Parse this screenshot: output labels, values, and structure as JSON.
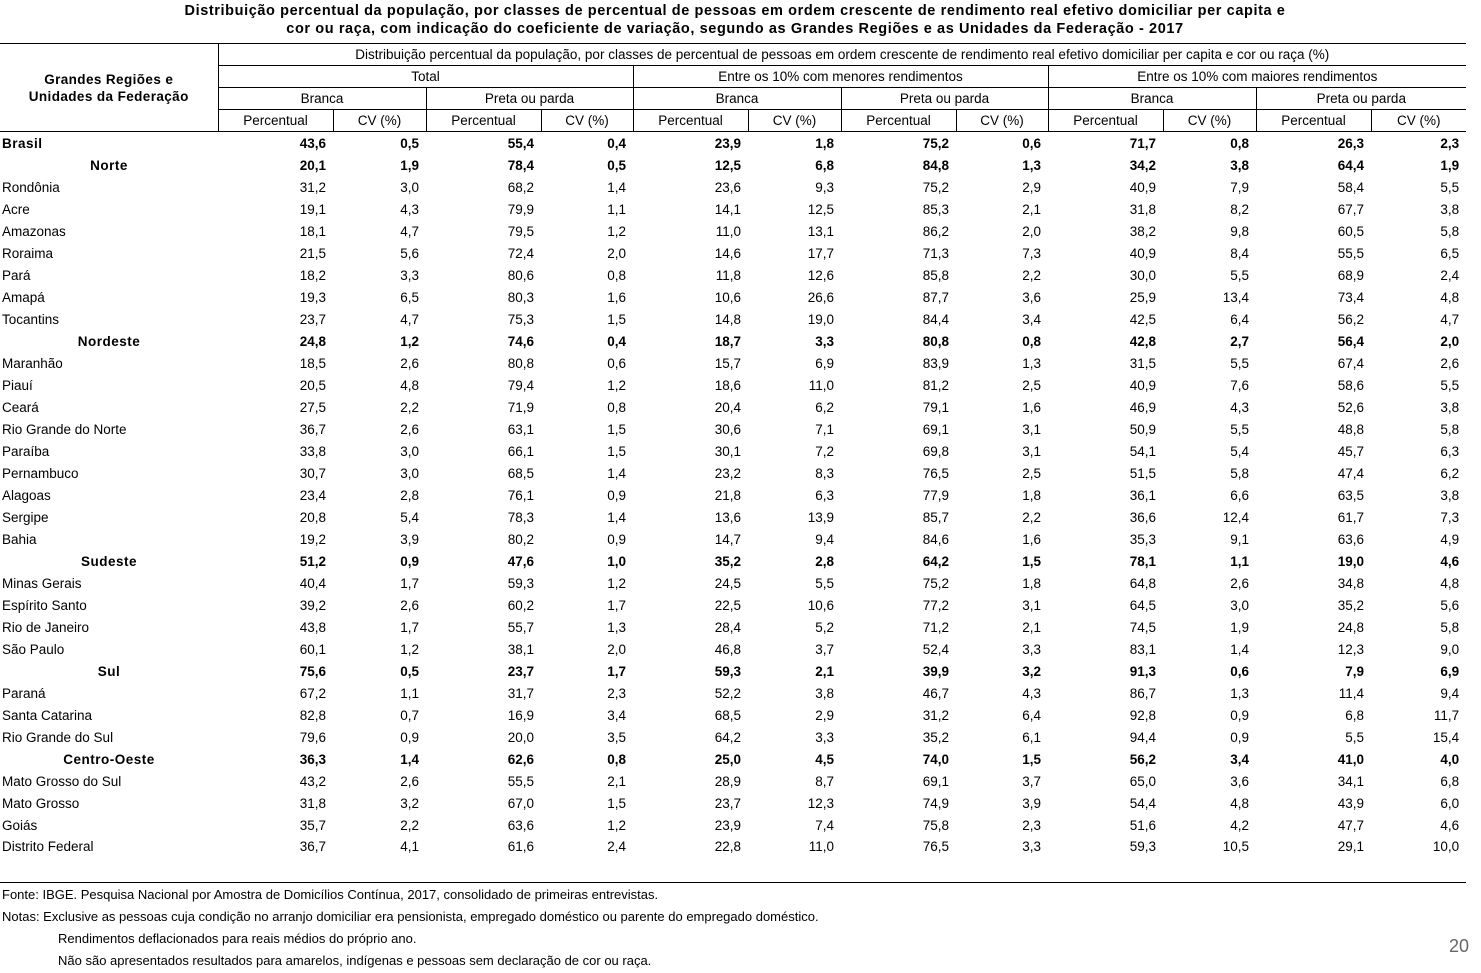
{
  "title": {
    "line1": "Distribuição percentual da população, por classes de percentual de pessoas em ordem crescente de rendimento real efetivo domiciliar per capita e",
    "line2": "cor ou raça, com indicação do coeficiente de variação, segundo as Grandes Regiões e as Unidades da Federação - 2017"
  },
  "table": {
    "row_header_line1": "Grandes Regiões e",
    "row_header_line2": "Unidades da Federação",
    "super_header": "Distribuição percentual da população, por classes de percentual de pessoas em ordem crescente de rendimento real efetivo domiciliar per capita e cor ou raça (%)",
    "groups": [
      "Total",
      "Entre os 10% com menores rendimentos",
      "Entre os 10% com maiores rendimentos"
    ],
    "subgroups": [
      "Branca",
      "Preta ou parda",
      "Branca",
      "Preta ou parda",
      "Branca",
      "Preta ou parda"
    ],
    "measures": [
      "Percentual",
      "CV (%)",
      "Percentual",
      "CV (%)",
      "Percentual",
      "CV (%)",
      "Percentual",
      "CV (%)",
      "Percentual",
      "CV (%)",
      "Percentual",
      "CV (%)"
    ],
    "rows": [
      {
        "name": "Brasil",
        "type": "country",
        "values": [
          "43,6",
          "0,5",
          "55,4",
          "0,4",
          "23,9",
          "1,8",
          "75,2",
          "0,6",
          "71,7",
          "0,8",
          "26,3",
          "2,3"
        ]
      },
      {
        "name": "Norte",
        "type": "region",
        "values": [
          "20,1",
          "1,9",
          "78,4",
          "0,5",
          "12,5",
          "6,8",
          "84,8",
          "1,3",
          "34,2",
          "3,8",
          "64,4",
          "1,9"
        ]
      },
      {
        "name": "Rondônia",
        "type": "state",
        "values": [
          "31,2",
          "3,0",
          "68,2",
          "1,4",
          "23,6",
          "9,3",
          "75,2",
          "2,9",
          "40,9",
          "7,9",
          "58,4",
          "5,5"
        ]
      },
      {
        "name": "Acre",
        "type": "state",
        "values": [
          "19,1",
          "4,3",
          "79,9",
          "1,1",
          "14,1",
          "12,5",
          "85,3",
          "2,1",
          "31,8",
          "8,2",
          "67,7",
          "3,8"
        ]
      },
      {
        "name": "Amazonas",
        "type": "state",
        "values": [
          "18,1",
          "4,7",
          "79,5",
          "1,2",
          "11,0",
          "13,1",
          "86,2",
          "2,0",
          "38,2",
          "9,8",
          "60,5",
          "5,8"
        ]
      },
      {
        "name": "Roraima",
        "type": "state",
        "values": [
          "21,5",
          "5,6",
          "72,4",
          "2,0",
          "14,6",
          "17,7",
          "71,3",
          "7,3",
          "40,9",
          "8,4",
          "55,5",
          "6,5"
        ]
      },
      {
        "name": "Pará",
        "type": "state",
        "values": [
          "18,2",
          "3,3",
          "80,6",
          "0,8",
          "11,8",
          "12,6",
          "85,8",
          "2,2",
          "30,0",
          "5,5",
          "68,9",
          "2,4"
        ]
      },
      {
        "name": "Amapá",
        "type": "state",
        "values": [
          "19,3",
          "6,5",
          "80,3",
          "1,6",
          "10,6",
          "26,6",
          "87,7",
          "3,6",
          "25,9",
          "13,4",
          "73,4",
          "4,8"
        ]
      },
      {
        "name": "Tocantins",
        "type": "state",
        "values": [
          "23,7",
          "4,7",
          "75,3",
          "1,5",
          "14,8",
          "19,0",
          "84,4",
          "3,4",
          "42,5",
          "6,4",
          "56,2",
          "4,7"
        ]
      },
      {
        "name": "Nordeste",
        "type": "region",
        "values": [
          "24,8",
          "1,2",
          "74,6",
          "0,4",
          "18,7",
          "3,3",
          "80,8",
          "0,8",
          "42,8",
          "2,7",
          "56,4",
          "2,0"
        ]
      },
      {
        "name": "Maranhão",
        "type": "state",
        "values": [
          "18,5",
          "2,6",
          "80,8",
          "0,6",
          "15,7",
          "6,9",
          "83,9",
          "1,3",
          "31,5",
          "5,5",
          "67,4",
          "2,6"
        ]
      },
      {
        "name": "Piauí",
        "type": "state",
        "values": [
          "20,5",
          "4,8",
          "79,4",
          "1,2",
          "18,6",
          "11,0",
          "81,2",
          "2,5",
          "40,9",
          "7,6",
          "58,6",
          "5,5"
        ]
      },
      {
        "name": "Ceará",
        "type": "state",
        "values": [
          "27,5",
          "2,2",
          "71,9",
          "0,8",
          "20,4",
          "6,2",
          "79,1",
          "1,6",
          "46,9",
          "4,3",
          "52,6",
          "3,8"
        ]
      },
      {
        "name": "Rio Grande do Norte",
        "type": "state",
        "values": [
          "36,7",
          "2,6",
          "63,1",
          "1,5",
          "30,6",
          "7,1",
          "69,1",
          "3,1",
          "50,9",
          "5,5",
          "48,8",
          "5,8"
        ]
      },
      {
        "name": "Paraíba",
        "type": "state",
        "values": [
          "33,8",
          "3,0",
          "66,1",
          "1,5",
          "30,1",
          "7,2",
          "69,8",
          "3,1",
          "54,1",
          "5,4",
          "45,7",
          "6,3"
        ]
      },
      {
        "name": "Pernambuco",
        "type": "state",
        "values": [
          "30,7",
          "3,0",
          "68,5",
          "1,4",
          "23,2",
          "8,3",
          "76,5",
          "2,5",
          "51,5",
          "5,8",
          "47,4",
          "6,2"
        ]
      },
      {
        "name": "Alagoas",
        "type": "state",
        "values": [
          "23,4",
          "2,8",
          "76,1",
          "0,9",
          "21,8",
          "6,3",
          "77,9",
          "1,8",
          "36,1",
          "6,6",
          "63,5",
          "3,8"
        ]
      },
      {
        "name": "Sergipe",
        "type": "state",
        "values": [
          "20,8",
          "5,4",
          "78,3",
          "1,4",
          "13,6",
          "13,9",
          "85,7",
          "2,2",
          "36,6",
          "12,4",
          "61,7",
          "7,3"
        ]
      },
      {
        "name": "Bahia",
        "type": "state",
        "values": [
          "19,2",
          "3,9",
          "80,2",
          "0,9",
          "14,7",
          "9,4",
          "84,6",
          "1,6",
          "35,3",
          "9,1",
          "63,6",
          "4,9"
        ]
      },
      {
        "name": "Sudeste",
        "type": "region",
        "values": [
          "51,2",
          "0,9",
          "47,6",
          "1,0",
          "35,2",
          "2,8",
          "64,2",
          "1,5",
          "78,1",
          "1,1",
          "19,0",
          "4,6"
        ]
      },
      {
        "name": "Minas Gerais",
        "type": "state",
        "values": [
          "40,4",
          "1,7",
          "59,3",
          "1,2",
          "24,5",
          "5,5",
          "75,2",
          "1,8",
          "64,8",
          "2,6",
          "34,8",
          "4,8"
        ]
      },
      {
        "name": "Espírito Santo",
        "type": "state",
        "values": [
          "39,2",
          "2,6",
          "60,2",
          "1,7",
          "22,5",
          "10,6",
          "77,2",
          "3,1",
          "64,5",
          "3,0",
          "35,2",
          "5,6"
        ]
      },
      {
        "name": "Rio de Janeiro",
        "type": "state",
        "values": [
          "43,8",
          "1,7",
          "55,7",
          "1,3",
          "28,4",
          "5,2",
          "71,2",
          "2,1",
          "74,5",
          "1,9",
          "24,8",
          "5,8"
        ]
      },
      {
        "name": "São Paulo",
        "type": "state",
        "values": [
          "60,1",
          "1,2",
          "38,1",
          "2,0",
          "46,8",
          "3,7",
          "52,4",
          "3,3",
          "83,1",
          "1,4",
          "12,3",
          "9,0"
        ]
      },
      {
        "name": "Sul",
        "type": "region",
        "values": [
          "75,6",
          "0,5",
          "23,7",
          "1,7",
          "59,3",
          "2,1",
          "39,9",
          "3,2",
          "91,3",
          "0,6",
          "7,9",
          "6,9"
        ]
      },
      {
        "name": "Paraná",
        "type": "state",
        "values": [
          "67,2",
          "1,1",
          "31,7",
          "2,3",
          "52,2",
          "3,8",
          "46,7",
          "4,3",
          "86,7",
          "1,3",
          "11,4",
          "9,4"
        ]
      },
      {
        "name": "Santa Catarina",
        "type": "state",
        "values": [
          "82,8",
          "0,7",
          "16,9",
          "3,4",
          "68,5",
          "2,9",
          "31,2",
          "6,4",
          "92,8",
          "0,9",
          "6,8",
          "11,7"
        ]
      },
      {
        "name": "Rio Grande do Sul",
        "type": "state",
        "values": [
          "79,6",
          "0,9",
          "20,0",
          "3,5",
          "64,2",
          "3,3",
          "35,2",
          "6,1",
          "94,4",
          "0,9",
          "5,5",
          "15,4"
        ]
      },
      {
        "name": "Centro-Oeste",
        "type": "region",
        "values": [
          "36,3",
          "1,4",
          "62,6",
          "0,8",
          "25,0",
          "4,5",
          "74,0",
          "1,5",
          "56,2",
          "3,4",
          "41,0",
          "4,0"
        ]
      },
      {
        "name": "Mato Grosso do Sul",
        "type": "state",
        "values": [
          "43,2",
          "2,6",
          "55,5",
          "2,1",
          "28,9",
          "8,7",
          "69,1",
          "3,7",
          "65,0",
          "3,6",
          "34,1",
          "6,8"
        ]
      },
      {
        "name": "Mato Grosso",
        "type": "state",
        "values": [
          "31,8",
          "3,2",
          "67,0",
          "1,5",
          "23,7",
          "12,3",
          "74,9",
          "3,9",
          "54,4",
          "4,8",
          "43,9",
          "6,0"
        ]
      },
      {
        "name": "Goiás",
        "type": "state",
        "values": [
          "35,7",
          "2,2",
          "63,6",
          "1,2",
          "23,9",
          "7,4",
          "75,8",
          "2,3",
          "51,6",
          "4,2",
          "47,7",
          "4,6"
        ]
      },
      {
        "name": "Distrito Federal",
        "type": "state",
        "values": [
          "36,7",
          "4,1",
          "61,6",
          "2,4",
          "22,8",
          "11,0",
          "76,5",
          "3,3",
          "59,3",
          "10,5",
          "29,1",
          "10,0"
        ]
      }
    ]
  },
  "footnotes": {
    "source": "Fonte: IBGE. Pesquisa Nacional por Amostra de Domicílios Contínua, 2017, consolidado de primeiras entrevistas.",
    "notes_line1": "Notas: Exclusive as pessoas cuja condição no arranjo domiciliar era pensionista, empregado doméstico ou parente do empregado doméstico.",
    "notes_line2": "Rendimentos deflacionados para reais médios do próprio ano.",
    "notes_line3": "Não são apresentados resultados para amarelos, indígenas e pessoas sem declaração de cor ou raça."
  },
  "page_number": "20"
}
